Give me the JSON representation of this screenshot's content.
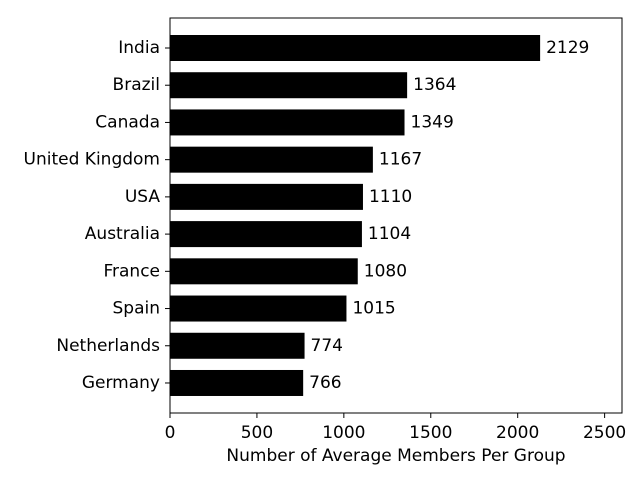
{
  "chart_data": {
    "type": "barh",
    "x_label": "Number of Average Members Per Group",
    "categories": [
      "India",
      "Brazil",
      "Canada",
      "United Kingdom",
      "USA",
      "Australia",
      "France",
      "Spain",
      "Netherlands",
      "Germany"
    ],
    "values": [
      2129,
      1364,
      1349,
      1167,
      1110,
      1104,
      1080,
      1015,
      774,
      766
    ],
    "color": "#000000",
    "xlim": [
      0,
      2600
    ],
    "xticks": [
      0,
      500,
      1000,
      1500,
      2000,
      2500
    ],
    "grid": false
  }
}
